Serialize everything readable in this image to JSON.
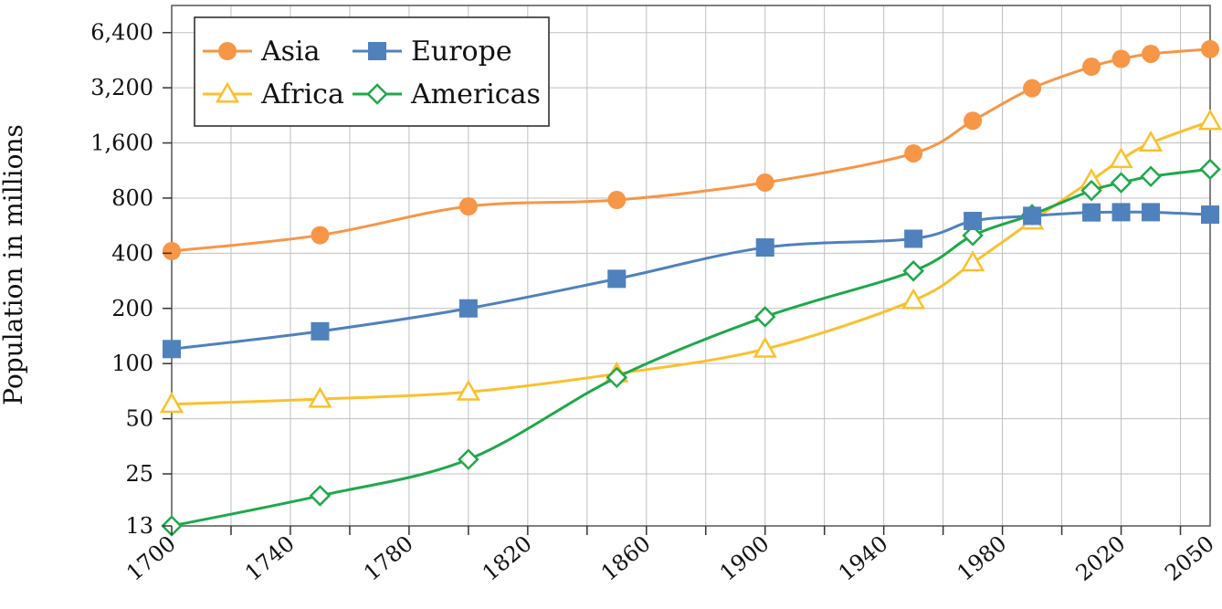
{
  "chart_data": {
    "type": "line",
    "title": "",
    "xlabel": "",
    "ylabel": "Population in millions",
    "y_scale": "log",
    "x_range": [
      1700,
      2050
    ],
    "y_range": [
      13,
      9000
    ],
    "x_ticks": [
      1700,
      1740,
      1780,
      1820,
      1860,
      1900,
      1940,
      1980,
      2020,
      2050
    ],
    "x_tick_labels": [
      "1700",
      "1740",
      "1780",
      "1820",
      "1860",
      "1900",
      "1940",
      "1980",
      "2020",
      "2050"
    ],
    "y_ticks": [
      13,
      25,
      50,
      100,
      200,
      400,
      800,
      1600,
      3200,
      6400
    ],
    "y_tick_labels": [
      "13",
      "25",
      "50",
      "100",
      "200",
      "400",
      "800",
      "1,600",
      "3,200",
      "6,400"
    ],
    "grid": true,
    "legend_position": "top-left",
    "series": [
      {
        "name": "Asia",
        "color": "#f79646",
        "marker": "circle-filled",
        "points": [
          [
            1700,
            411
          ],
          [
            1750,
            502
          ],
          [
            1800,
            721
          ],
          [
            1850,
            781
          ],
          [
            1900,
            972
          ],
          [
            1950,
            1403
          ],
          [
            1970,
            2114
          ],
          [
            1990,
            3181
          ],
          [
            2010,
            4170
          ],
          [
            2020,
            4600
          ],
          [
            2030,
            4900
          ],
          [
            2050,
            5200
          ]
        ]
      },
      {
        "name": "Europe",
        "color": "#4f81bd",
        "marker": "square-filled",
        "points": [
          [
            1700,
            120
          ],
          [
            1750,
            150
          ],
          [
            1800,
            200
          ],
          [
            1850,
            290
          ],
          [
            1900,
            430
          ],
          [
            1950,
            480
          ],
          [
            1970,
            600
          ],
          [
            1990,
            640
          ],
          [
            2010,
            668
          ],
          [
            2020,
            670
          ],
          [
            2030,
            670
          ],
          [
            2050,
            650
          ]
        ]
      },
      {
        "name": "Africa",
        "color": "#fbc02d",
        "marker": "triangle-open",
        "points": [
          [
            1700,
            60
          ],
          [
            1750,
            64
          ],
          [
            1800,
            70
          ],
          [
            1850,
            88
          ],
          [
            1900,
            120
          ],
          [
            1950,
            221
          ],
          [
            1970,
            355
          ],
          [
            1990,
            600
          ],
          [
            2010,
            1000
          ],
          [
            2020,
            1300
          ],
          [
            2030,
            1600
          ],
          [
            2050,
            2100
          ]
        ]
      },
      {
        "name": "Americas",
        "color": "#1fa84a",
        "marker": "diamond-open",
        "points": [
          [
            1700,
            13
          ],
          [
            1750,
            19
          ],
          [
            1800,
            30
          ],
          [
            1850,
            84
          ],
          [
            1900,
            180
          ],
          [
            1950,
            320
          ],
          [
            1970,
            500
          ],
          [
            1990,
            650
          ],
          [
            2010,
            880
          ],
          [
            2020,
            970
          ],
          [
            2030,
            1050
          ],
          [
            2050,
            1150
          ]
        ]
      }
    ]
  }
}
